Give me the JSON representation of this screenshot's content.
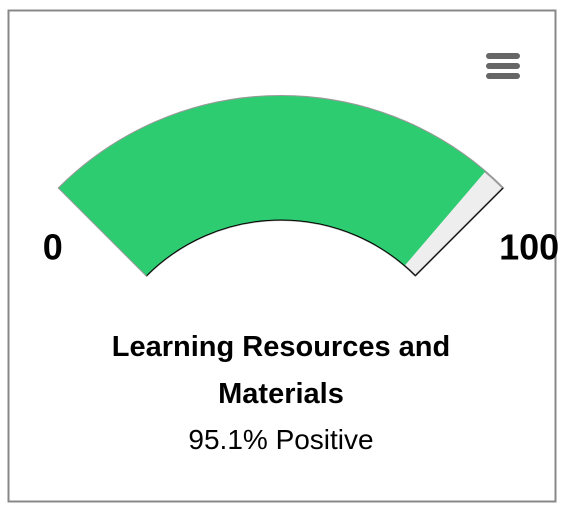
{
  "chart_data": {
    "type": "gauge",
    "title": "Learning Resources and Materials",
    "value": 95.1,
    "value_label": "95.1% Positive",
    "ylim": [
      0,
      100
    ],
    "yticks": [
      0,
      100
    ],
    "color": "#2ecc71",
    "track_color": "#eeeeee"
  }
}
